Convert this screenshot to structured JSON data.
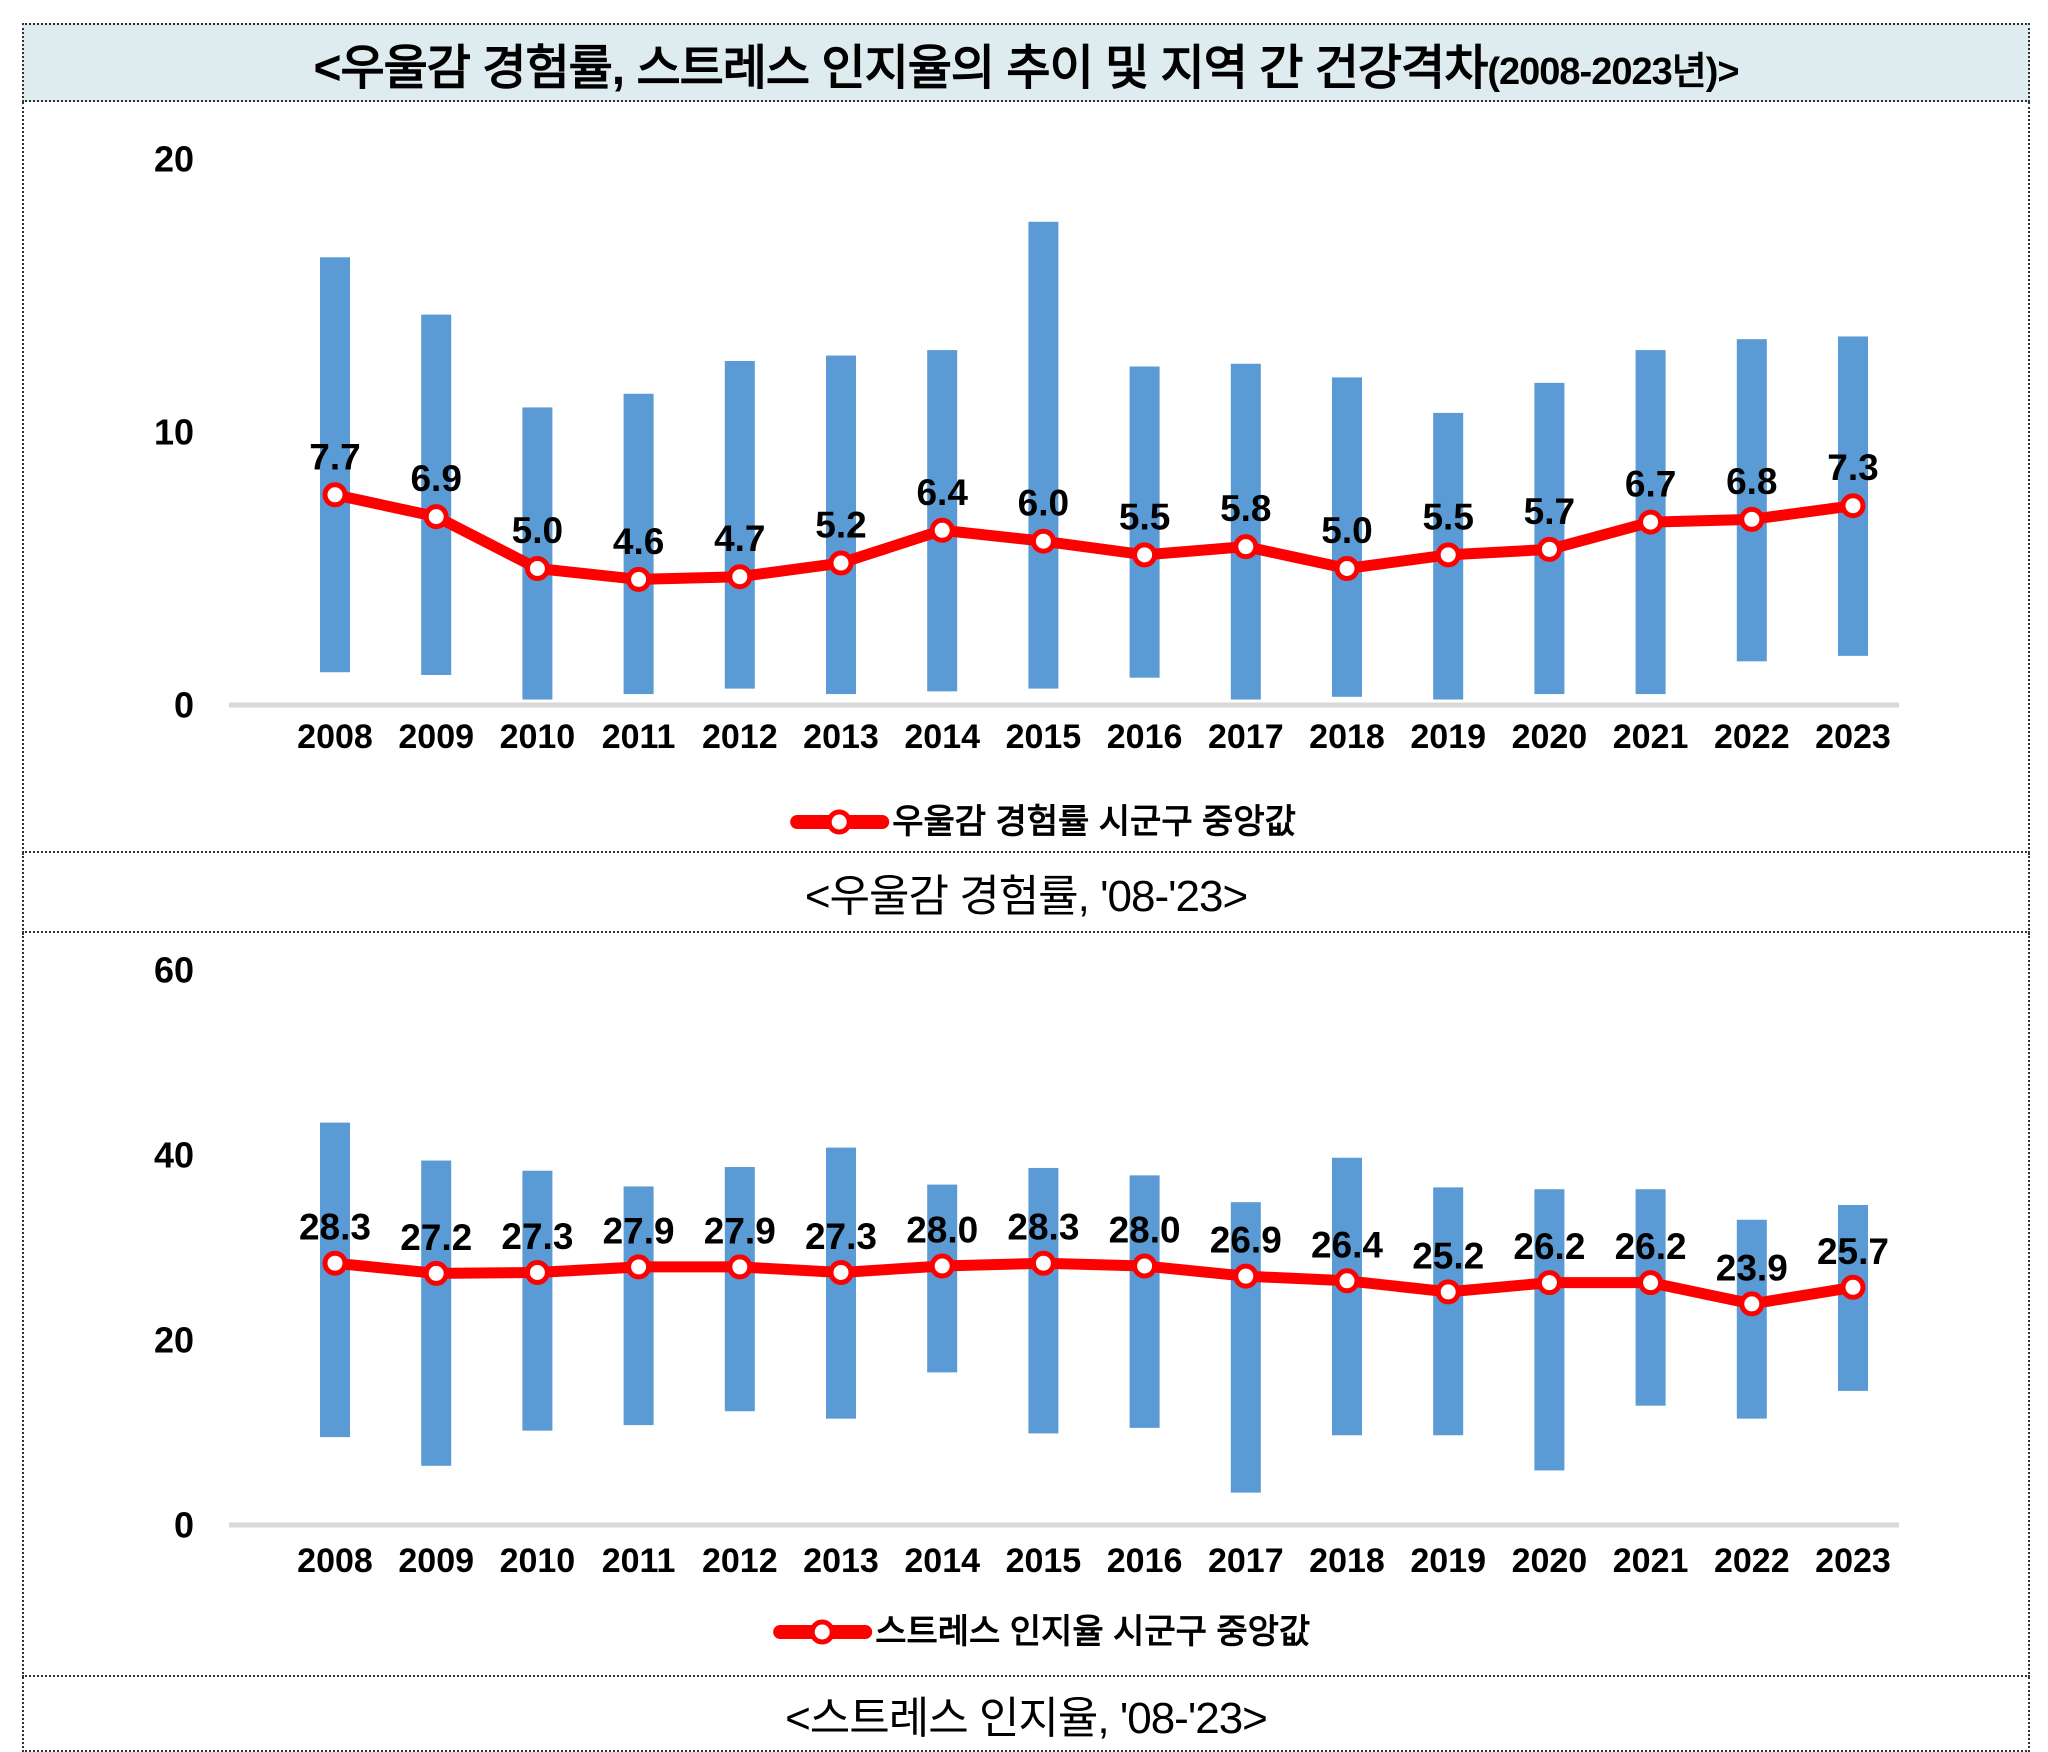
{
  "page": {
    "title_main": "<우울감 경험률, 스트레스 인지율의 추이 및 지역 간 건강격차",
    "title_small": "(2008-2023년)>"
  },
  "colors": {
    "bar": "#5B9BD5",
    "line": "#FF0000",
    "marker_fill": "#FFFFFF",
    "title_bg": "#DFECEF",
    "gridline": "#D9D9D9",
    "text": "#000000"
  },
  "chart_data": [
    {
      "type": "bar",
      "subtype": "range-bars-with-median-line",
      "caption": "<우울감 경험률, '08-'23>",
      "legend": "우울감 경험률 시군구 중앙값",
      "legend_position": "bottom",
      "grid": "zero-line-only",
      "ylim": [
        0,
        20
      ],
      "yticks": [
        0,
        10,
        20
      ],
      "categories": [
        "2008",
        "2009",
        "2010",
        "2011",
        "2012",
        "2013",
        "2014",
        "2015",
        "2016",
        "2017",
        "2018",
        "2019",
        "2020",
        "2021",
        "2022",
        "2023"
      ],
      "series": [
        {
          "name": "median_line",
          "type": "line",
          "values": [
            7.7,
            6.9,
            5.0,
            4.6,
            4.7,
            5.2,
            6.4,
            6.0,
            5.5,
            5.8,
            5.0,
            5.5,
            5.7,
            6.7,
            6.8,
            7.3
          ]
        },
        {
          "name": "range_bars",
          "type": "range-bar",
          "max": [
            16.4,
            14.3,
            10.9,
            11.4,
            12.6,
            12.8,
            13.0,
            17.7,
            12.4,
            12.5,
            12.0,
            10.7,
            11.8,
            13.0,
            13.4,
            13.5
          ],
          "min": [
            1.2,
            1.1,
            0.2,
            0.4,
            0.6,
            0.4,
            0.5,
            0.6,
            1.0,
            0.2,
            0.3,
            0.2,
            0.4,
            0.4,
            1.6,
            1.8
          ]
        }
      ]
    },
    {
      "type": "bar",
      "subtype": "range-bars-with-median-line",
      "caption": "<스트레스 인지율, '08-'23>",
      "legend": "스트레스 인지율 시군구 중앙값",
      "legend_position": "bottom",
      "grid": "zero-line-only",
      "ylim": [
        0,
        60
      ],
      "yticks": [
        0,
        20,
        40,
        60
      ],
      "categories": [
        "2008",
        "2009",
        "2010",
        "2011",
        "2012",
        "2013",
        "2014",
        "2015",
        "2016",
        "2017",
        "2018",
        "2019",
        "2020",
        "2021",
        "2022",
        "2023"
      ],
      "series": [
        {
          "name": "median_line",
          "type": "line",
          "values": [
            28.3,
            27.2,
            27.3,
            27.9,
            27.9,
            27.3,
            28.0,
            28.3,
            28.0,
            26.9,
            26.4,
            25.2,
            26.2,
            26.2,
            23.9,
            25.7
          ]
        },
        {
          "name": "range_bars",
          "type": "range-bar",
          "max": [
            43.5,
            39.4,
            38.3,
            36.6,
            38.7,
            40.8,
            36.8,
            38.6,
            37.8,
            34.9,
            39.7,
            36.5,
            36.3,
            36.3,
            33.0,
            34.6
          ],
          "min": [
            9.5,
            6.4,
            10.2,
            10.8,
            12.3,
            11.5,
            16.5,
            9.9,
            10.5,
            3.5,
            9.7,
            9.7,
            5.9,
            12.9,
            11.5,
            14.5
          ]
        }
      ]
    }
  ]
}
